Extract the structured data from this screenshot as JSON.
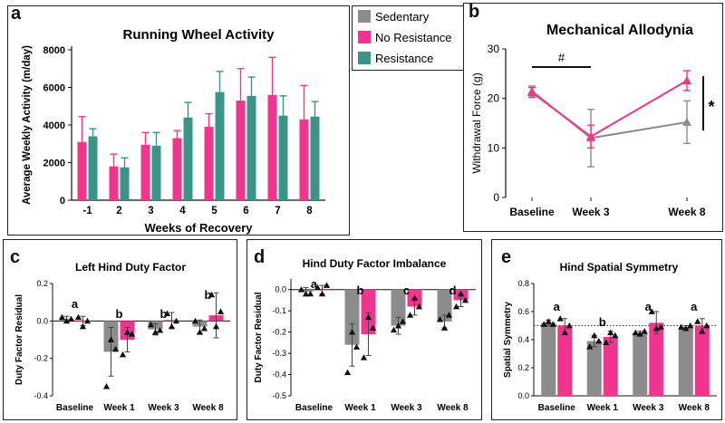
{
  "colors": {
    "sedentary": "#8c8c8c",
    "no_resistance": "#f0358f",
    "resistance": "#3c9488",
    "text": "#111111"
  },
  "legend": [
    {
      "name": "Sedentary",
      "color": "#8c8c8c"
    },
    {
      "name": "No Resistance",
      "color": "#f0358f"
    },
    {
      "name": "Resistance",
      "color": "#3c9488"
    }
  ],
  "chart_data": [
    {
      "id": "a",
      "panel_label": "a",
      "type": "bar",
      "title": "Running Wheel Activity",
      "xlabel": "Weeks of Recovery",
      "ylabel": "Average Weekly Activity (m/day)",
      "ylim": [
        0,
        8000
      ],
      "yticks": [
        0,
        2000,
        4000,
        6000,
        8000
      ],
      "yticklabels": [
        "0",
        "2000",
        "4000",
        "6000",
        "8000"
      ],
      "categories": [
        "-1",
        "2",
        "3",
        "4",
        "5",
        "6",
        "7",
        "8"
      ],
      "series": [
        {
          "name": "No Resistance",
          "color": "#f0358f",
          "values": [
            3100,
            1800,
            2950,
            3300,
            3900,
            5300,
            5600,
            4300
          ],
          "errors": [
            1350,
            650,
            650,
            400,
            700,
            1700,
            2000,
            1800
          ]
        },
        {
          "name": "Resistance",
          "color": "#3c9488",
          "values": [
            3400,
            1750,
            2900,
            4400,
            5750,
            5550,
            4500,
            4450
          ],
          "errors": [
            400,
            500,
            700,
            800,
            1100,
            1000,
            1050,
            800
          ]
        }
      ]
    },
    {
      "id": "b",
      "panel_label": "b",
      "type": "line",
      "title": "Mechanical Allodynia",
      "xlabel": "",
      "ylabel": "Withdrawal Force (g)",
      "ylim": [
        0,
        30
      ],
      "yticks": [
        0,
        10,
        20,
        30
      ],
      "yticklabels": [
        "0",
        "10",
        "20",
        "30"
      ],
      "x": [
        0,
        3,
        8
      ],
      "xticklabels": [
        "Baseline",
        "Week 3",
        "Week 8"
      ],
      "series": [
        {
          "name": "Sedentary",
          "color": "#8c8c8c",
          "values": [
            21.5,
            12,
            15.2
          ],
          "errors": [
            1,
            5.8,
            4.3
          ]
        },
        {
          "name": "No Resistance",
          "color": "#f0358f",
          "values": [
            21.2,
            12.3,
            23.6
          ],
          "errors": [
            1,
            2.3,
            2
          ]
        }
      ],
      "annotations": [
        {
          "text": "#",
          "span": "Baseline to Week 3"
        },
        {
          "text": "*",
          "span": "Week 8"
        }
      ]
    },
    {
      "id": "c",
      "panel_label": "c",
      "type": "bar",
      "title": "Left Hind Duty Factor",
      "ylabel": "Duty Factor Residual",
      "ylim": [
        -0.4,
        0.2
      ],
      "yticks": [
        -0.4,
        -0.2,
        0,
        0.2
      ],
      "yticklabels": [
        "-0.4",
        "-0.2",
        "0.0",
        "0.2"
      ],
      "categories": [
        "Baseline",
        "Week 1",
        "Week 3",
        "Week 8"
      ],
      "series": [
        {
          "name": "Sedentary",
          "color": "#8c8c8c",
          "values": [
            0.01,
            -0.165,
            -0.045,
            -0.03
          ],
          "errors": [
            0.015,
            0.13,
            0.03,
            0.035
          ],
          "points": [
            [
              0.02,
              0.0,
              0.01
            ],
            [
              -0.35,
              -0.1,
              -0.15
            ],
            [
              -0.02,
              -0.06,
              -0.05
            ],
            [
              0.0,
              -0.06,
              -0.04
            ]
          ]
        },
        {
          "name": "No Resistance",
          "color": "#f0358f",
          "values": [
            0.0,
            -0.1,
            0.005,
            0.03
          ],
          "errors": [
            0.025,
            0.065,
            0.04,
            0.12
          ],
          "points": [
            [
              0.02,
              -0.03,
              0.0
            ],
            [
              -0.18,
              -0.06,
              -0.07
            ],
            [
              0.04,
              -0.03,
              0.0
            ],
            [
              0.14,
              -0.03,
              0.05
            ]
          ]
        }
      ],
      "significance": [
        "a",
        "b",
        "b",
        "b"
      ]
    },
    {
      "id": "d",
      "panel_label": "d",
      "type": "bar",
      "title": "Hind Duty Factor Imbalance",
      "ylabel": "Duty Factor Residual",
      "ylim": [
        -0.5,
        0.05
      ],
      "yticks": [
        -0.5,
        -0.4,
        -0.3,
        -0.2,
        -0.1,
        0
      ],
      "yticklabels": [
        "-0.5",
        "-0.4",
        "-0.3",
        "-0.2",
        "-0.1",
        "0.0"
      ],
      "categories": [
        "Baseline",
        "Week 1",
        "Week 3",
        "Week 8"
      ],
      "series": [
        {
          "name": "Sedentary",
          "color": "#8c8c8c",
          "values": [
            -0.01,
            -0.26,
            -0.17,
            -0.15
          ],
          "errors": [
            0.02,
            0.1,
            0.04,
            0.03
          ],
          "points": [
            [
              0.0,
              -0.02,
              -0.02
            ],
            [
              -0.39,
              -0.2,
              -0.27
            ],
            [
              -0.19,
              -0.17,
              -0.15
            ],
            [
              -0.14,
              -0.18,
              -0.12
            ]
          ]
        },
        {
          "name": "No Resistance",
          "color": "#f0358f",
          "values": [
            0.0,
            -0.21,
            -0.08,
            -0.05
          ],
          "errors": [
            0.02,
            0.1,
            0.04,
            0.03
          ],
          "points": [
            [
              0.01,
              -0.02,
              0.02
            ],
            [
              -0.32,
              -0.13,
              -0.18
            ],
            [
              -0.12,
              -0.04,
              -0.08
            ],
            [
              -0.08,
              -0.02,
              -0.05
            ]
          ]
        }
      ],
      "significance": [
        "a",
        "b",
        "c",
        "d"
      ]
    },
    {
      "id": "e",
      "panel_label": "e",
      "type": "bar",
      "title": "Hind Spatial Symmetry",
      "ylabel": "Spatial Symmetry",
      "ylim": [
        0,
        0.8
      ],
      "yticks": [
        0,
        0.2,
        0.4,
        0.6,
        0.8
      ],
      "yticklabels": [
        "0.0",
        "0.2",
        "0.4",
        "0.6",
        "0.8"
      ],
      "reference_line": 0.5,
      "categories": [
        "Baseline",
        "Week 1",
        "Week 3",
        "Week 8"
      ],
      "series": [
        {
          "name": "Sedentary",
          "color": "#8c8c8c",
          "values": [
            0.52,
            0.39,
            0.45,
            0.49
          ],
          "errors": [
            0.02,
            0.04,
            0.01,
            0.01
          ],
          "points": [
            [
              0.51,
              0.53,
              0.51
            ],
            [
              0.35,
              0.43,
              0.39
            ],
            [
              0.45,
              0.44,
              0.46
            ],
            [
              0.49,
              0.48,
              0.5
            ]
          ]
        },
        {
          "name": "No Resistance",
          "color": "#f0358f",
          "values": [
            0.5,
            0.42,
            0.52,
            0.5
          ],
          "errors": [
            0.05,
            0.04,
            0.08,
            0.05
          ],
          "points": [
            [
              0.55,
              0.45,
              0.5
            ],
            [
              0.38,
              0.45,
              0.43
            ],
            [
              0.6,
              0.48,
              0.49
            ],
            [
              0.53,
              0.46,
              0.5
            ]
          ]
        }
      ],
      "significance": [
        "a",
        "b",
        "a",
        "a"
      ]
    }
  ]
}
